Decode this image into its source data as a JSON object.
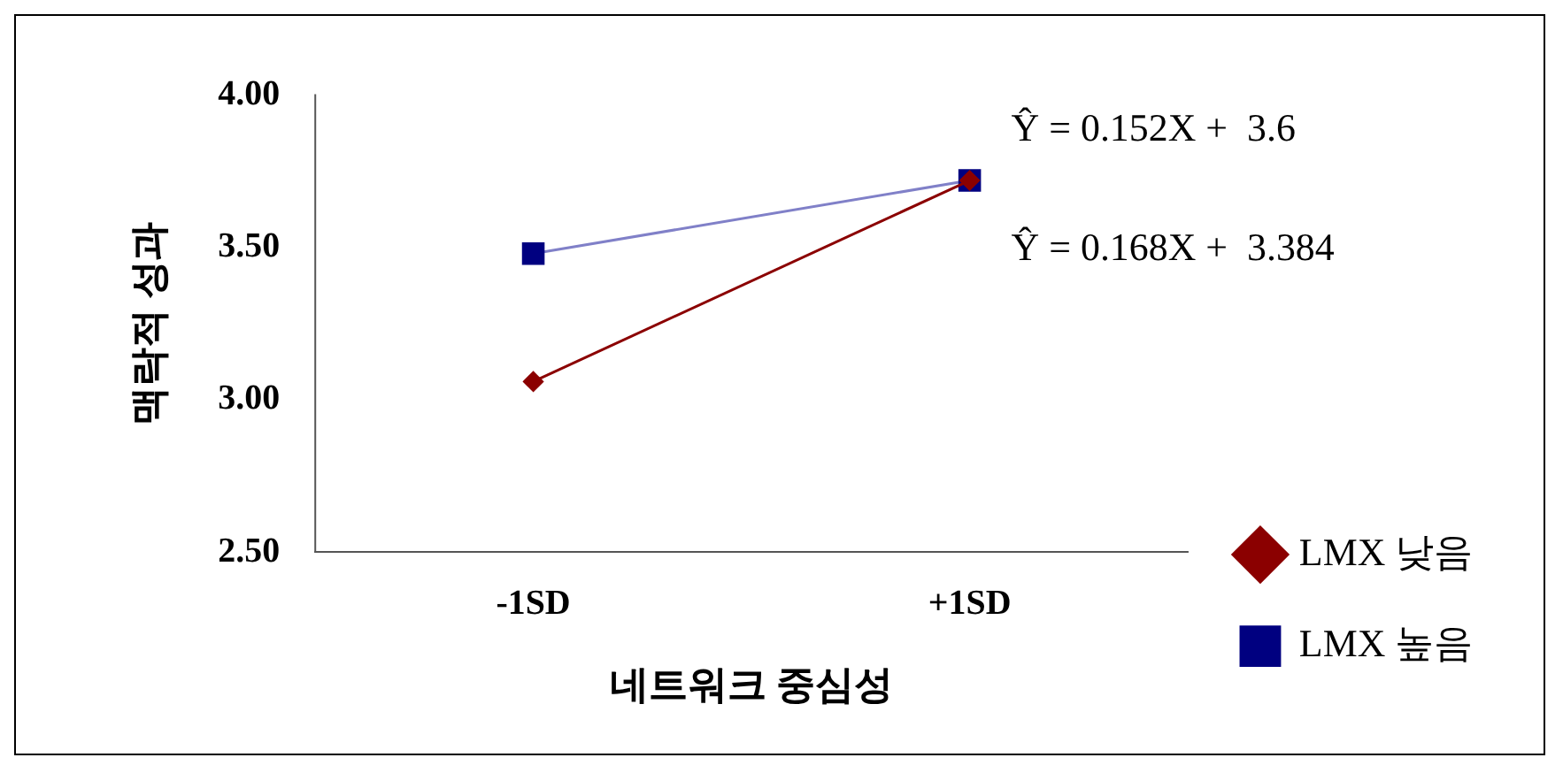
{
  "chart_data": {
    "type": "line",
    "xlabel": "네트워크 중심성",
    "ylabel": "맥락적 성과",
    "categories": [
      "-1SD",
      "+1SD"
    ],
    "series": [
      {
        "name": "LMX 높음",
        "color": "#8080c8",
        "values": [
          3.48,
          3.72
        ],
        "marker": "square"
      },
      {
        "name": "LMX 낮음",
        "color": "#8b0000",
        "values": [
          3.06,
          3.72
        ],
        "marker": "diamond"
      }
    ],
    "ylim": [
      2.5,
      4.0
    ],
    "yticks": [
      {
        "value": 2.5,
        "label": "2.50"
      },
      {
        "value": 3.0,
        "label": "3.00"
      },
      {
        "value": 3.5,
        "label": "3.50"
      },
      {
        "value": 4.0,
        "label": "4.00"
      }
    ],
    "grid": false,
    "legend": "right",
    "annotations": [
      "Ŷ = 0.152X +  3.6",
      "Ŷ = 0.168X +  3.384"
    ]
  }
}
